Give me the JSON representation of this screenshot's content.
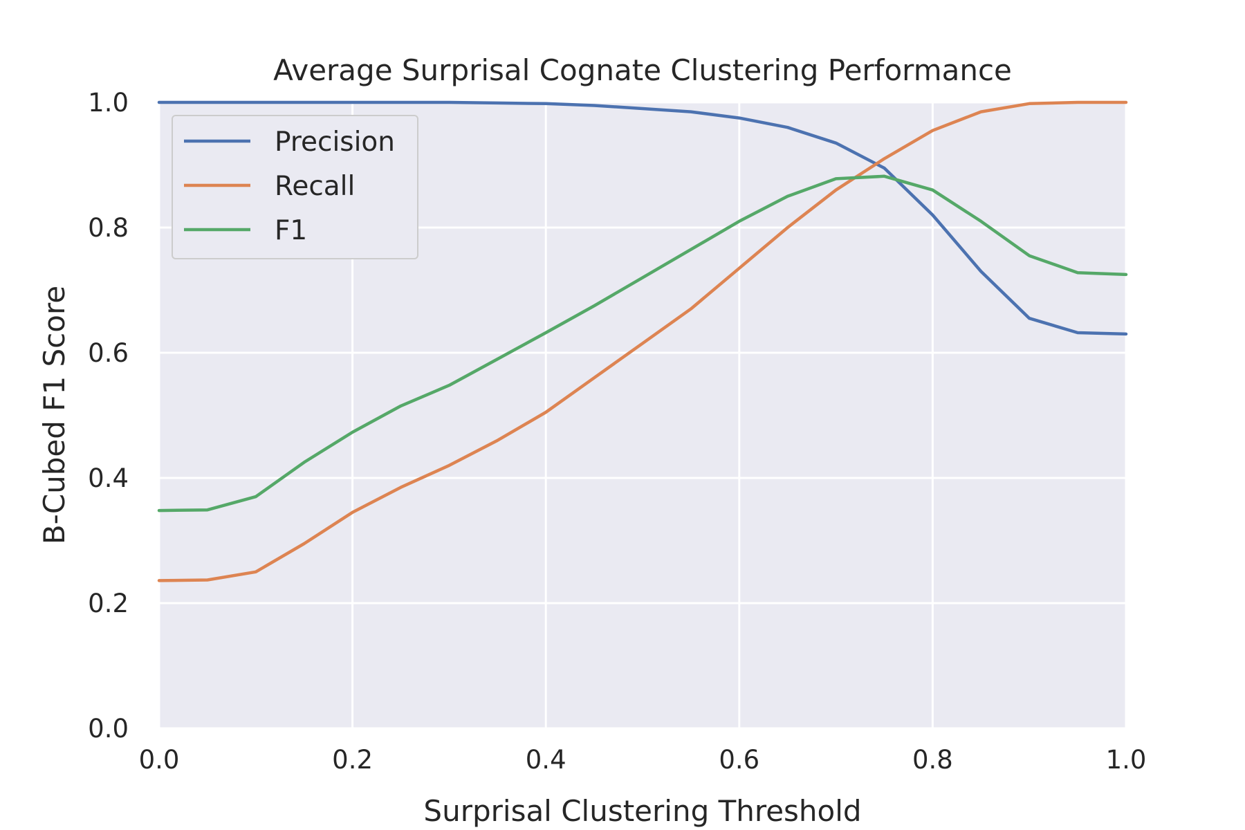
{
  "chart_data": {
    "type": "line",
    "title": "Average Surprisal Cognate Clustering Performance",
    "xlabel": "Surprisal Clustering Threshold",
    "ylabel": "B-Cubed F1 Score",
    "xlim": [
      0,
      1
    ],
    "ylim": [
      0,
      1
    ],
    "xticks": [
      "0.0",
      "0.2",
      "0.4",
      "0.6",
      "0.8",
      "1.0"
    ],
    "yticks": [
      "0.0",
      "0.2",
      "0.4",
      "0.6",
      "0.8",
      "1.0"
    ],
    "grid": true,
    "legend_position": "upper-left",
    "x": [
      0.0,
      0.05,
      0.1,
      0.15,
      0.2,
      0.25,
      0.3,
      0.35,
      0.4,
      0.45,
      0.5,
      0.55,
      0.6,
      0.65,
      0.7,
      0.75,
      0.8,
      0.85,
      0.9,
      0.95,
      1.0
    ],
    "series": [
      {
        "name": "Precision",
        "color": "#4c72b0",
        "values": [
          1.0,
          1.0,
          1.0,
          1.0,
          1.0,
          1.0,
          1.0,
          0.999,
          0.998,
          0.995,
          0.99,
          0.985,
          0.975,
          0.96,
          0.935,
          0.895,
          0.82,
          0.73,
          0.655,
          0.632,
          0.63
        ]
      },
      {
        "name": "Recall",
        "color": "#dd8452",
        "values": [
          0.236,
          0.237,
          0.25,
          0.295,
          0.345,
          0.385,
          0.42,
          0.46,
          0.505,
          0.56,
          0.615,
          0.67,
          0.735,
          0.8,
          0.86,
          0.91,
          0.955,
          0.985,
          0.998,
          1.0,
          1.0
        ]
      },
      {
        "name": "F1",
        "color": "#55a868",
        "values": [
          0.348,
          0.349,
          0.37,
          0.425,
          0.473,
          0.515,
          0.548,
          0.59,
          0.632,
          0.675,
          0.72,
          0.765,
          0.81,
          0.85,
          0.878,
          0.882,
          0.86,
          0.81,
          0.755,
          0.728,
          0.725
        ]
      }
    ]
  }
}
